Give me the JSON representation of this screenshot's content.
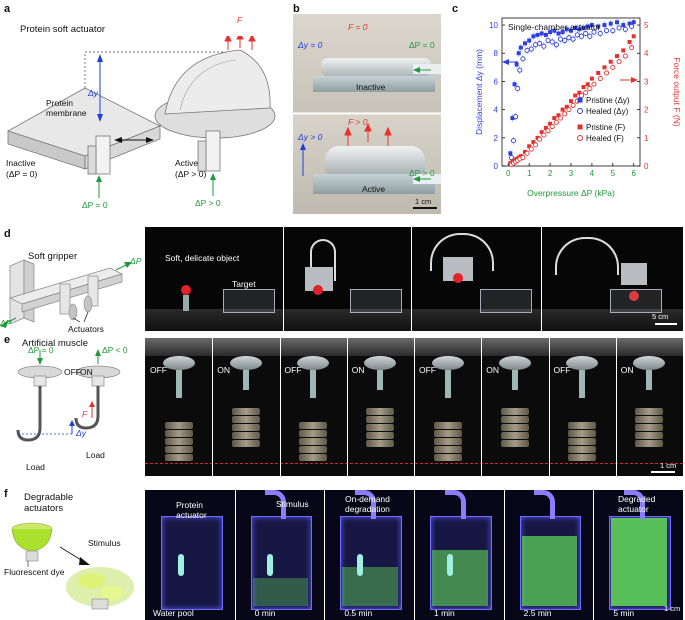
{
  "panels": {
    "a": {
      "letter": "a",
      "title": "Protein soft actuator",
      "membrane_label": "Protein\nmembrane",
      "dy": "Δy",
      "F": "F",
      "inactive_label": "Inactive",
      "inactive_cond": "(ΔP = 0)",
      "active_label": "Active",
      "active_cond": "(ΔP > 0)",
      "dp_zero": "ΔP = 0",
      "dp_pos": "ΔP > 0"
    },
    "b": {
      "letter": "b",
      "top_F": "F = 0",
      "top_dy": "Δy = 0",
      "top_dp": "ΔP = 0",
      "top_state": "Inactive",
      "bot_F": "F > 0",
      "bot_dy": "Δy > 0",
      "bot_dp": "ΔP > 0",
      "bot_state": "Active",
      "scale": "1 cm"
    },
    "c": {
      "letter": "c",
      "title": "Single-chamber actuator"
    },
    "d": {
      "letter": "d",
      "title": "Soft gripper",
      "dp": "ΔP",
      "actuators": "Actuators",
      "object": "Soft, delicate object",
      "target": "Target",
      "scale": "5 cm"
    },
    "e": {
      "letter": "e",
      "title": "Artificial muscle",
      "off_dp": "ΔP = 0",
      "on_dp": "ΔP < 0",
      "off": "OFF",
      "on": "ON",
      "F": "F",
      "dy": "Δy",
      "load": "Load",
      "frames": [
        "OFF",
        "ON",
        "OFF",
        "ON",
        "OFF",
        "ON",
        "OFF",
        "ON"
      ],
      "scale": "1 cm"
    },
    "f": {
      "letter": "f",
      "title": "Degradable\nactuators",
      "stimulus": "Stimulus",
      "dye": "Fluorescent dye",
      "frame_labels": [
        "Water pool",
        "0 min",
        "0.5 min",
        "1 min",
        "2.5 min",
        "5 min"
      ],
      "protein_actuator": "Protein\nactuator",
      "stimulus_arrow": "Stimulus",
      "on_demand": "On-demand\ndegradation",
      "degraded": "Degraded\nactuator",
      "scale": "1 cm"
    }
  },
  "chart_data": {
    "type": "scatter",
    "title": "Single-chamber actuator",
    "xlabel": "Overpressure ΔP (kPa)",
    "ylabel": "Displacement Δy (mm)",
    "ylabel_right": "Force output F (N)",
    "xlim": [
      -0.3,
      6.3
    ],
    "ylim": [
      0,
      10.5
    ],
    "ylim_right": [
      0,
      5.25
    ],
    "xticks": [
      0,
      1,
      2,
      3,
      4,
      5,
      6
    ],
    "yticks": [
      0,
      2,
      4,
      6,
      8,
      10
    ],
    "yticks_right": [
      0,
      1,
      2,
      3,
      4,
      5
    ],
    "legend": "bottom-right",
    "series": [
      {
        "name": "Pristine (Δy)",
        "axis": "left",
        "marker": "filled-square",
        "color": "#2d3fe0",
        "x": [
          0.1,
          0.2,
          0.3,
          0.4,
          0.5,
          0.6,
          0.8,
          1.0,
          1.2,
          1.4,
          1.6,
          1.8,
          2.0,
          2.2,
          2.4,
          2.6,
          2.8,
          3.0,
          3.2,
          3.4,
          3.6,
          3.8,
          4.0,
          4.3,
          4.6,
          4.9,
          5.2,
          5.5,
          5.8,
          6.0
        ],
        "y": [
          0.9,
          3.4,
          5.8,
          7.2,
          8.0,
          8.4,
          8.7,
          8.9,
          9.2,
          9.3,
          9.4,
          9.3,
          9.5,
          9.6,
          9.4,
          9.5,
          9.7,
          9.6,
          9.8,
          9.7,
          9.8,
          9.9,
          10.0,
          9.9,
          10.0,
          10.1,
          10.2,
          10.0,
          10.1,
          10.2
        ]
      },
      {
        "name": "Healed (Δy)",
        "axis": "left",
        "marker": "open-circle",
        "color": "#2d3fe0",
        "x": [
          0.15,
          0.25,
          0.35,
          0.45,
          0.55,
          0.7,
          0.9,
          1.1,
          1.3,
          1.5,
          1.7,
          1.9,
          2.1,
          2.3,
          2.5,
          2.7,
          2.9,
          3.1,
          3.3,
          3.5,
          3.7,
          3.9,
          4.1,
          4.4,
          4.7,
          5.0,
          5.3,
          5.6,
          5.9
        ],
        "y": [
          0.6,
          1.8,
          3.5,
          5.5,
          6.8,
          7.6,
          8.2,
          8.3,
          8.6,
          8.7,
          8.5,
          8.9,
          8.8,
          8.6,
          9.0,
          8.9,
          9.1,
          9.0,
          9.3,
          9.2,
          9.4,
          9.2,
          9.5,
          9.4,
          9.6,
          9.6,
          9.8,
          9.7,
          9.9
        ]
      },
      {
        "name": "Pristine (F)",
        "axis": "right",
        "marker": "filled-square",
        "color": "#e6322d",
        "x": [
          0.1,
          0.2,
          0.3,
          0.4,
          0.5,
          0.6,
          0.8,
          1.0,
          1.2,
          1.4,
          1.6,
          1.8,
          2.0,
          2.2,
          2.4,
          2.6,
          2.8,
          3.0,
          3.2,
          3.4,
          3.6,
          3.8,
          4.0,
          4.3,
          4.6,
          4.9,
          5.2,
          5.5,
          5.8,
          6.0
        ],
        "y": [
          0.1,
          0.15,
          0.2,
          0.25,
          0.3,
          0.35,
          0.5,
          0.7,
          0.85,
          1.0,
          1.2,
          1.35,
          1.5,
          1.7,
          1.8,
          2.0,
          2.1,
          2.3,
          2.5,
          2.6,
          2.8,
          2.9,
          3.1,
          3.3,
          3.5,
          3.7,
          3.9,
          4.1,
          4.4,
          4.6
        ]
      },
      {
        "name": "Healed (F)",
        "axis": "right",
        "marker": "open-circle",
        "color": "#e6322d",
        "x": [
          0.15,
          0.25,
          0.35,
          0.45,
          0.55,
          0.7,
          0.9,
          1.1,
          1.3,
          1.5,
          1.7,
          1.9,
          2.1,
          2.3,
          2.5,
          2.7,
          2.9,
          3.1,
          3.3,
          3.5,
          3.7,
          3.9,
          4.1,
          4.4,
          4.7,
          5.0,
          5.3,
          5.6,
          5.9
        ],
        "y": [
          0.05,
          0.1,
          0.15,
          0.2,
          0.25,
          0.3,
          0.45,
          0.6,
          0.75,
          0.95,
          1.1,
          1.25,
          1.4,
          1.55,
          1.7,
          1.85,
          2.0,
          2.15,
          2.3,
          2.5,
          2.6,
          2.75,
          2.9,
          3.1,
          3.3,
          3.5,
          3.7,
          3.9,
          4.2
        ]
      }
    ]
  }
}
